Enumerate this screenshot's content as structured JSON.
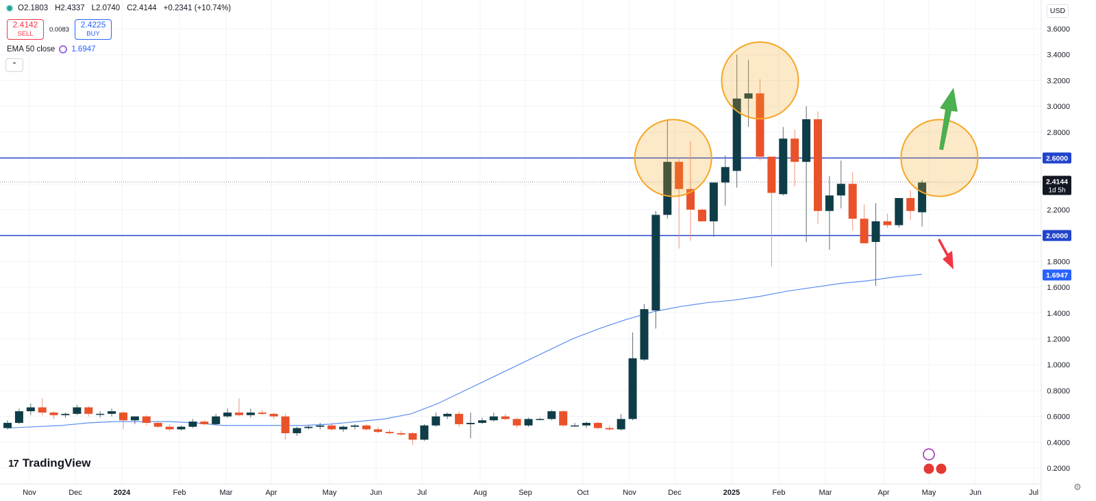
{
  "header": {
    "open": "O2.1803",
    "high": "H2.4337",
    "low": "L2.0740",
    "close": "C2.4144",
    "change": "+0.2341 (+10.74%)"
  },
  "trade": {
    "sell_price": "2.4142",
    "sell_label": "SELL",
    "spread": "0.0083",
    "buy_price": "2.4225",
    "buy_label": "BUY"
  },
  "indicator": {
    "label": "EMA 50 close",
    "value": "1.6947"
  },
  "currency": "USD",
  "logo": {
    "mark": "17",
    "text": "TradingView"
  },
  "collapse_icon": "chevron-up-icon",
  "settings_icon": "gear-icon",
  "colors": {
    "up": "#0f3d47",
    "down": "#e9522a",
    "ema": "#5b8def",
    "level": "#2244cc",
    "highlight": "#f5a623"
  },
  "chart_data": {
    "type": "candlestick",
    "timeframe": "weekly",
    "ylim": [
      0.2,
      3.6
    ],
    "y_ticks": [
      "3.6000",
      "3.4000",
      "3.2000",
      "3.0000",
      "2.8000",
      "2.6000",
      "2.4000",
      "2.2000",
      "2.0000",
      "1.8000",
      "1.6000",
      "1.4000",
      "1.2000",
      "1.0000",
      "0.8000",
      "0.6000",
      "0.4000",
      "0.2000"
    ],
    "x_ticks": [
      "Nov",
      "Dec",
      "2024",
      "Feb",
      "Mar",
      "Apr",
      "May",
      "Jun",
      "Jul",
      "Aug",
      "Sep",
      "Oct",
      "Nov",
      "Dec",
      "2025",
      "Feb",
      "Mar",
      "Apr",
      "May",
      "Jun",
      "Jul"
    ],
    "candles": [
      {
        "o": 0.51,
        "h": 0.57,
        "l": 0.5,
        "c": 0.55
      },
      {
        "o": 0.55,
        "h": 0.66,
        "l": 0.54,
        "c": 0.64
      },
      {
        "o": 0.64,
        "h": 0.7,
        "l": 0.61,
        "c": 0.67
      },
      {
        "o": 0.67,
        "h": 0.74,
        "l": 0.61,
        "c": 0.63
      },
      {
        "o": 0.63,
        "h": 0.64,
        "l": 0.58,
        "c": 0.61
      },
      {
        "o": 0.61,
        "h": 0.63,
        "l": 0.59,
        "c": 0.62
      },
      {
        "o": 0.62,
        "h": 0.69,
        "l": 0.61,
        "c": 0.67
      },
      {
        "o": 0.67,
        "h": 0.68,
        "l": 0.6,
        "c": 0.62
      },
      {
        "o": 0.62,
        "h": 0.64,
        "l": 0.59,
        "c": 0.62
      },
      {
        "o": 0.62,
        "h": 0.66,
        "l": 0.6,
        "c": 0.64
      },
      {
        "o": 0.63,
        "h": 0.64,
        "l": 0.5,
        "c": 0.57
      },
      {
        "o": 0.57,
        "h": 0.6,
        "l": 0.54,
        "c": 0.6
      },
      {
        "o": 0.6,
        "h": 0.61,
        "l": 0.53,
        "c": 0.55
      },
      {
        "o": 0.55,
        "h": 0.56,
        "l": 0.51,
        "c": 0.52
      },
      {
        "o": 0.52,
        "h": 0.54,
        "l": 0.49,
        "c": 0.5
      },
      {
        "o": 0.5,
        "h": 0.53,
        "l": 0.49,
        "c": 0.52
      },
      {
        "o": 0.52,
        "h": 0.58,
        "l": 0.51,
        "c": 0.56
      },
      {
        "o": 0.56,
        "h": 0.57,
        "l": 0.53,
        "c": 0.54
      },
      {
        "o": 0.54,
        "h": 0.62,
        "l": 0.53,
        "c": 0.6
      },
      {
        "o": 0.6,
        "h": 0.66,
        "l": 0.59,
        "c": 0.63
      },
      {
        "o": 0.63,
        "h": 0.74,
        "l": 0.6,
        "c": 0.61
      },
      {
        "o": 0.61,
        "h": 0.66,
        "l": 0.59,
        "c": 0.63
      },
      {
        "o": 0.63,
        "h": 0.65,
        "l": 0.61,
        "c": 0.62
      },
      {
        "o": 0.62,
        "h": 0.63,
        "l": 0.58,
        "c": 0.6
      },
      {
        "o": 0.6,
        "h": 0.62,
        "l": 0.42,
        "c": 0.47
      },
      {
        "o": 0.47,
        "h": 0.52,
        "l": 0.45,
        "c": 0.51
      },
      {
        "o": 0.51,
        "h": 0.53,
        "l": 0.5,
        "c": 0.52
      },
      {
        "o": 0.52,
        "h": 0.55,
        "l": 0.5,
        "c": 0.53
      },
      {
        "o": 0.53,
        "h": 0.55,
        "l": 0.49,
        "c": 0.5
      },
      {
        "o": 0.5,
        "h": 0.53,
        "l": 0.48,
        "c": 0.52
      },
      {
        "o": 0.52,
        "h": 0.54,
        "l": 0.5,
        "c": 0.53
      },
      {
        "o": 0.53,
        "h": 0.54,
        "l": 0.49,
        "c": 0.5
      },
      {
        "o": 0.5,
        "h": 0.52,
        "l": 0.47,
        "c": 0.48
      },
      {
        "o": 0.48,
        "h": 0.5,
        "l": 0.46,
        "c": 0.47
      },
      {
        "o": 0.47,
        "h": 0.49,
        "l": 0.45,
        "c": 0.46
      },
      {
        "o": 0.47,
        "h": 0.48,
        "l": 0.38,
        "c": 0.42
      },
      {
        "o": 0.42,
        "h": 0.54,
        "l": 0.41,
        "c": 0.53
      },
      {
        "o": 0.53,
        "h": 0.63,
        "l": 0.52,
        "c": 0.6
      },
      {
        "o": 0.6,
        "h": 0.63,
        "l": 0.58,
        "c": 0.62
      },
      {
        "o": 0.62,
        "h": 0.64,
        "l": 0.52,
        "c": 0.54
      },
      {
        "o": 0.54,
        "h": 0.63,
        "l": 0.43,
        "c": 0.55
      },
      {
        "o": 0.55,
        "h": 0.59,
        "l": 0.54,
        "c": 0.57
      },
      {
        "o": 0.57,
        "h": 0.63,
        "l": 0.56,
        "c": 0.6
      },
      {
        "o": 0.6,
        "h": 0.62,
        "l": 0.57,
        "c": 0.58
      },
      {
        "o": 0.58,
        "h": 0.59,
        "l": 0.51,
        "c": 0.53
      },
      {
        "o": 0.53,
        "h": 0.59,
        "l": 0.52,
        "c": 0.58
      },
      {
        "o": 0.58,
        "h": 0.59,
        "l": 0.57,
        "c": 0.58
      },
      {
        "o": 0.58,
        "h": 0.65,
        "l": 0.57,
        "c": 0.64
      },
      {
        "o": 0.64,
        "h": 0.65,
        "l": 0.52,
        "c": 0.53
      },
      {
        "o": 0.53,
        "h": 0.55,
        "l": 0.52,
        "c": 0.53
      },
      {
        "o": 0.53,
        "h": 0.56,
        "l": 0.51,
        "c": 0.55
      },
      {
        "o": 0.55,
        "h": 0.56,
        "l": 0.5,
        "c": 0.51
      },
      {
        "o": 0.51,
        "h": 0.53,
        "l": 0.49,
        "c": 0.5
      },
      {
        "o": 0.5,
        "h": 0.62,
        "l": 0.49,
        "c": 0.58
      },
      {
        "o": 0.58,
        "h": 1.25,
        "l": 0.57,
        "c": 1.05
      },
      {
        "o": 1.04,
        "h": 1.47,
        "l": 1.03,
        "c": 1.43
      },
      {
        "o": 1.42,
        "h": 2.19,
        "l": 1.28,
        "c": 2.16
      },
      {
        "o": 2.16,
        "h": 2.9,
        "l": 2.13,
        "c": 2.57
      },
      {
        "o": 2.57,
        "h": 2.59,
        "l": 1.9,
        "c": 2.36
      },
      {
        "o": 2.36,
        "h": 2.73,
        "l": 1.96,
        "c": 2.2
      },
      {
        "o": 2.2,
        "h": 2.21,
        "l": 2.11,
        "c": 2.11
      },
      {
        "o": 2.11,
        "h": 2.41,
        "l": 1.99,
        "c": 2.41
      },
      {
        "o": 2.41,
        "h": 2.62,
        "l": 2.23,
        "c": 2.53
      },
      {
        "o": 2.5,
        "h": 3.4,
        "l": 2.37,
        "c": 3.06
      },
      {
        "o": 3.06,
        "h": 3.36,
        "l": 2.84,
        "c": 3.1
      },
      {
        "o": 3.1,
        "h": 3.21,
        "l": 2.58,
        "c": 2.61
      },
      {
        "o": 2.61,
        "h": 2.61,
        "l": 1.76,
        "c": 2.33
      },
      {
        "o": 2.32,
        "h": 2.84,
        "l": 2.31,
        "c": 2.75
      },
      {
        "o": 2.75,
        "h": 2.82,
        "l": 2.38,
        "c": 2.57
      },
      {
        "o": 2.57,
        "h": 3.0,
        "l": 1.95,
        "c": 2.9
      },
      {
        "o": 2.9,
        "h": 2.96,
        "l": 2.09,
        "c": 2.19
      },
      {
        "o": 2.19,
        "h": 2.46,
        "l": 1.89,
        "c": 2.31
      },
      {
        "o": 2.31,
        "h": 2.58,
        "l": 2.21,
        "c": 2.4
      },
      {
        "o": 2.4,
        "h": 2.49,
        "l": 2.04,
        "c": 2.13
      },
      {
        "o": 2.13,
        "h": 2.24,
        "l": 1.94,
        "c": 1.94
      },
      {
        "o": 1.95,
        "h": 2.25,
        "l": 1.61,
        "c": 2.11
      },
      {
        "o": 2.11,
        "h": 2.17,
        "l": 2.06,
        "c": 2.08
      },
      {
        "o": 2.08,
        "h": 2.29,
        "l": 2.06,
        "c": 2.29
      },
      {
        "o": 2.29,
        "h": 2.35,
        "l": 2.12,
        "c": 2.19
      },
      {
        "o": 2.18,
        "h": 2.43,
        "l": 2.07,
        "c": 2.41
      }
    ],
    "ema": [
      0.51,
      0.52,
      0.53,
      0.55,
      0.56,
      0.56,
      0.56,
      0.55,
      0.53,
      0.53,
      0.53,
      0.53,
      0.54,
      0.56,
      0.58,
      0.62,
      0.7,
      0.8,
      0.9,
      1.0,
      1.1,
      1.2,
      1.28,
      1.35,
      1.41,
      1.45,
      1.48,
      1.5,
      1.53,
      1.57,
      1.6,
      1.63,
      1.65,
      1.68,
      1.7
    ],
    "ema_label": "1.6947",
    "hlines": [
      {
        "value": 2.6,
        "label": "2.6000"
      },
      {
        "value": 2.0,
        "label": "2.0000"
      }
    ],
    "last_price": {
      "value": 2.4144,
      "label": "2.4144",
      "countdown": "1d 5h"
    },
    "circles": [
      {
        "x_index": 57.5,
        "y": 2.6
      },
      {
        "x_index": 65.0,
        "y": 3.2
      },
      {
        "x_index": 80.5,
        "y": 2.6
      }
    ],
    "arrows": [
      {
        "dir": "up",
        "color": "#4caf50"
      },
      {
        "dir": "down",
        "color": "#f23645"
      }
    ]
  }
}
